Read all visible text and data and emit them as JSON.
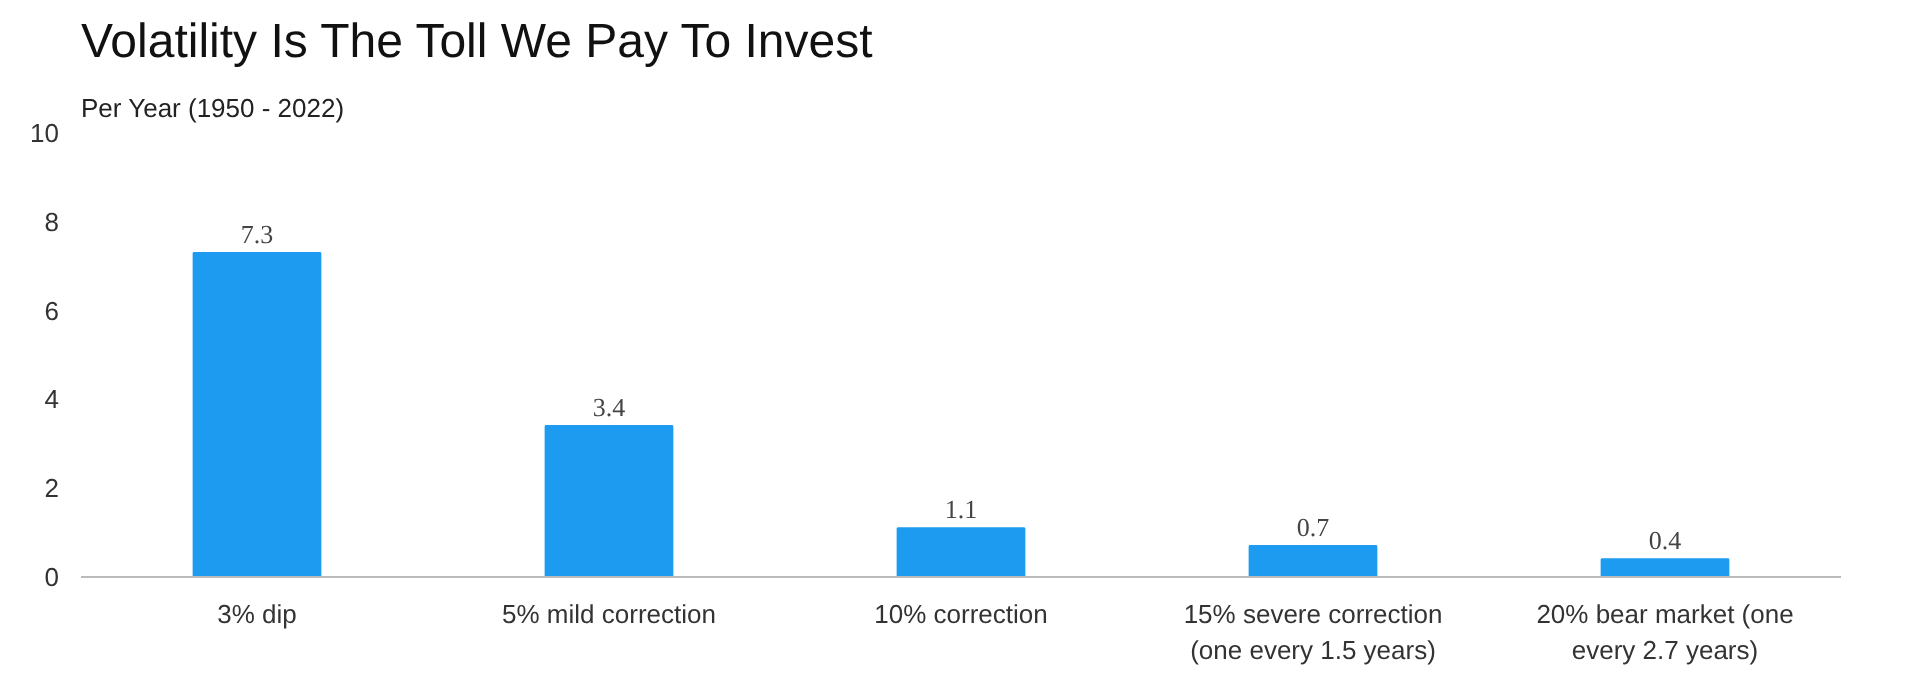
{
  "chart_data": {
    "type": "bar",
    "title": "Volatility Is The Toll We Pay To Invest",
    "subtitle": "Per Year (1950 - 2022)",
    "categories": [
      "3% dip",
      "5% mild correction",
      "10% correction",
      "15% severe correction (one every 1.5 years)",
      "20% bear market (one every 2.7 years)"
    ],
    "values": [
      7.3,
      3.4,
      1.1,
      0.7,
      0.4
    ],
    "color": "#1c9bf0",
    "ylim": [
      0,
      10
    ],
    "yticks": [
      0,
      2,
      4,
      6,
      8,
      10
    ],
    "grid": false,
    "data_labels": true
  }
}
